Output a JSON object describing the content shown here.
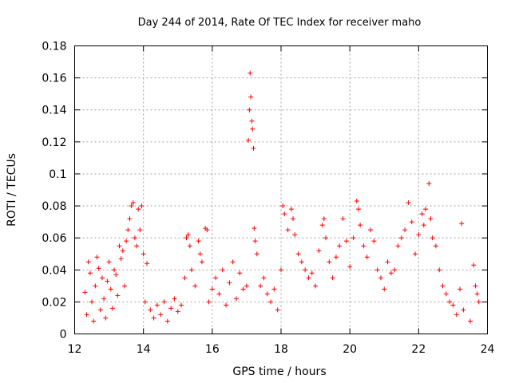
{
  "chart_data": {
    "type": "scatter",
    "title": "Day 244 of 2014, Rate Of TEC Index for receiver maho",
    "xlabel": "GPS time / hours",
    "ylabel": "ROTI / TECUs",
    "xlim": [
      12,
      24
    ],
    "ylim": [
      0,
      0.18
    ],
    "xticks": [
      12,
      14,
      16,
      18,
      20,
      22,
      24
    ],
    "yticks": [
      0,
      0.02,
      0.04,
      0.06,
      0.08,
      0.1,
      0.12,
      0.14,
      0.16,
      0.18
    ],
    "xtick_labels": [
      "12",
      "14",
      "16",
      "18",
      "20",
      "22",
      "24"
    ],
    "ytick_labels": [
      "0",
      "0.02",
      "0.04",
      "0.06",
      "0.08",
      "0.1",
      "0.12",
      "0.14",
      "0.16",
      "0.18"
    ],
    "grid": true,
    "marker": "+",
    "color": "#ff0000",
    "series": [
      {
        "name": "ROTI",
        "points": [
          [
            12.3,
            0.026
          ],
          [
            12.35,
            0.012
          ],
          [
            12.4,
            0.045
          ],
          [
            12.45,
            0.038
          ],
          [
            12.5,
            0.02
          ],
          [
            12.55,
            0.008
          ],
          [
            12.6,
            0.03
          ],
          [
            12.65,
            0.048
          ],
          [
            12.7,
            0.041
          ],
          [
            12.75,
            0.015
          ],
          [
            12.8,
            0.035
          ],
          [
            12.85,
            0.022
          ],
          [
            12.9,
            0.01
          ],
          [
            12.95,
            0.033
          ],
          [
            13.0,
            0.045
          ],
          [
            13.05,
            0.028
          ],
          [
            13.1,
            0.016
          ],
          [
            13.15,
            0.04
          ],
          [
            13.2,
            0.037
          ],
          [
            13.25,
            0.024
          ],
          [
            13.3,
            0.055
          ],
          [
            13.35,
            0.047
          ],
          [
            13.4,
            0.052
          ],
          [
            13.45,
            0.03
          ],
          [
            13.5,
            0.058
          ],
          [
            13.55,
            0.065
          ],
          [
            13.6,
            0.072
          ],
          [
            13.65,
            0.08
          ],
          [
            13.7,
            0.082
          ],
          [
            13.75,
            0.06
          ],
          [
            13.8,
            0.055
          ],
          [
            13.85,
            0.078
          ],
          [
            13.9,
            0.065
          ],
          [
            13.95,
            0.08
          ],
          [
            14.0,
            0.05
          ],
          [
            14.05,
            0.02
          ],
          [
            14.1,
            0.044
          ],
          [
            14.2,
            0.015
          ],
          [
            14.3,
            0.01
          ],
          [
            14.4,
            0.018
          ],
          [
            14.5,
            0.012
          ],
          [
            14.6,
            0.02
          ],
          [
            14.7,
            0.008
          ],
          [
            14.8,
            0.016
          ],
          [
            14.9,
            0.022
          ],
          [
            15.0,
            0.014
          ],
          [
            15.1,
            0.018
          ],
          [
            15.2,
            0.035
          ],
          [
            15.25,
            0.06
          ],
          [
            15.3,
            0.062
          ],
          [
            15.35,
            0.055
          ],
          [
            15.4,
            0.04
          ],
          [
            15.5,
            0.03
          ],
          [
            15.6,
            0.058
          ],
          [
            15.65,
            0.05
          ],
          [
            15.7,
            0.045
          ],
          [
            15.8,
            0.066
          ],
          [
            15.85,
            0.065
          ],
          [
            15.9,
            0.02
          ],
          [
            16.0,
            0.028
          ],
          [
            16.1,
            0.035
          ],
          [
            16.2,
            0.025
          ],
          [
            16.3,
            0.04
          ],
          [
            16.4,
            0.018
          ],
          [
            16.5,
            0.032
          ],
          [
            16.6,
            0.045
          ],
          [
            16.7,
            0.022
          ],
          [
            16.8,
            0.038
          ],
          [
            16.9,
            0.028
          ],
          [
            17.0,
            0.03
          ],
          [
            17.05,
            0.121
          ],
          [
            17.08,
            0.14
          ],
          [
            17.1,
            0.163
          ],
          [
            17.12,
            0.148
          ],
          [
            17.15,
            0.133
          ],
          [
            17.17,
            0.128
          ],
          [
            17.2,
            0.116
          ],
          [
            17.22,
            0.066
          ],
          [
            17.25,
            0.058
          ],
          [
            17.3,
            0.05
          ],
          [
            17.4,
            0.03
          ],
          [
            17.5,
            0.035
          ],
          [
            17.6,
            0.025
          ],
          [
            17.7,
            0.02
          ],
          [
            17.8,
            0.028
          ],
          [
            17.9,
            0.015
          ],
          [
            18.0,
            0.04
          ],
          [
            18.05,
            0.08
          ],
          [
            18.1,
            0.075
          ],
          [
            18.2,
            0.065
          ],
          [
            18.3,
            0.078
          ],
          [
            18.35,
            0.072
          ],
          [
            18.4,
            0.062
          ],
          [
            18.5,
            0.05
          ],
          [
            18.6,
            0.045
          ],
          [
            18.7,
            0.04
          ],
          [
            18.8,
            0.035
          ],
          [
            18.9,
            0.038
          ],
          [
            19.0,
            0.03
          ],
          [
            19.1,
            0.052
          ],
          [
            19.2,
            0.068
          ],
          [
            19.25,
            0.072
          ],
          [
            19.3,
            0.06
          ],
          [
            19.4,
            0.045
          ],
          [
            19.5,
            0.035
          ],
          [
            19.6,
            0.048
          ],
          [
            19.7,
            0.055
          ],
          [
            19.8,
            0.072
          ],
          [
            19.9,
            0.058
          ],
          [
            20.0,
            0.042
          ],
          [
            20.1,
            0.06
          ],
          [
            20.2,
            0.083
          ],
          [
            20.25,
            0.078
          ],
          [
            20.3,
            0.068
          ],
          [
            20.4,
            0.055
          ],
          [
            20.5,
            0.048
          ],
          [
            20.6,
            0.065
          ],
          [
            20.7,
            0.058
          ],
          [
            20.8,
            0.04
          ],
          [
            20.9,
            0.035
          ],
          [
            21.0,
            0.028
          ],
          [
            21.1,
            0.045
          ],
          [
            21.2,
            0.038
          ],
          [
            21.3,
            0.04
          ],
          [
            21.4,
            0.055
          ],
          [
            21.5,
            0.06
          ],
          [
            21.6,
            0.065
          ],
          [
            21.7,
            0.082
          ],
          [
            21.8,
            0.07
          ],
          [
            21.9,
            0.05
          ],
          [
            22.0,
            0.062
          ],
          [
            22.1,
            0.075
          ],
          [
            22.15,
            0.068
          ],
          [
            22.2,
            0.078
          ],
          [
            22.3,
            0.094
          ],
          [
            22.35,
            0.072
          ],
          [
            22.4,
            0.06
          ],
          [
            22.5,
            0.055
          ],
          [
            22.6,
            0.04
          ],
          [
            22.7,
            0.03
          ],
          [
            22.8,
            0.025
          ],
          [
            22.9,
            0.02
          ],
          [
            23.0,
            0.018
          ],
          [
            23.1,
            0.012
          ],
          [
            23.2,
            0.028
          ],
          [
            23.25,
            0.069
          ],
          [
            23.3,
            0.015
          ],
          [
            23.5,
            0.008
          ],
          [
            23.6,
            0.043
          ],
          [
            23.65,
            0.03
          ],
          [
            23.7,
            0.025
          ],
          [
            23.75,
            0.02
          ]
        ]
      }
    ]
  }
}
